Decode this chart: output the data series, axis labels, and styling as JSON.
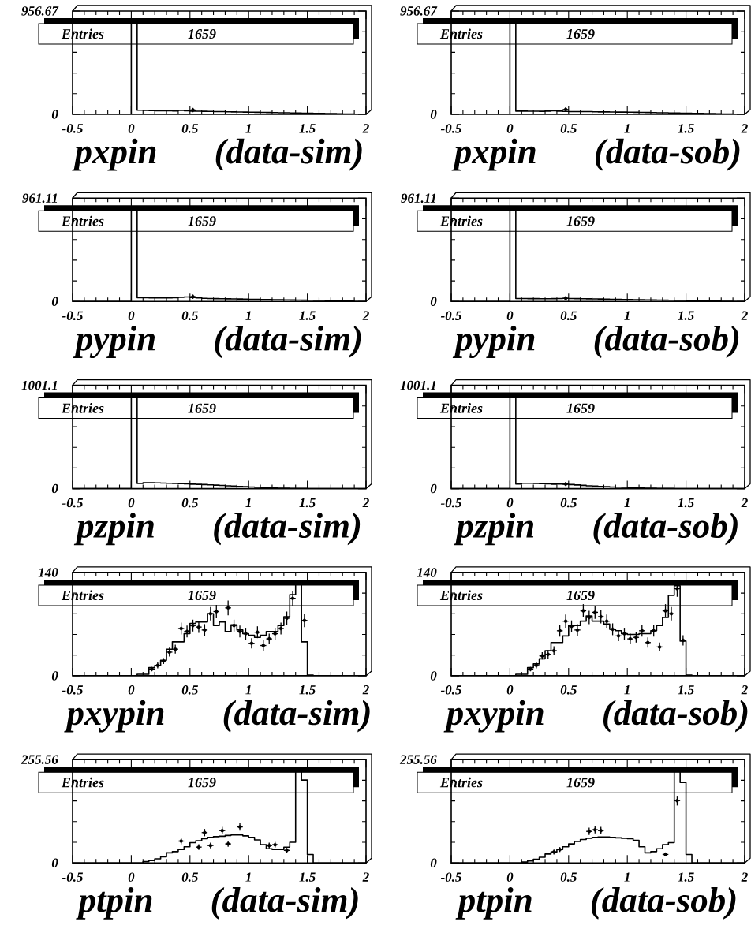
{
  "chart_data": [
    {
      "type": "histogram",
      "title": "pxpin (data-sim)",
      "xlim": [
        -0.5,
        2
      ],
      "xticks": [
        -0.5,
        0,
        0.5,
        1,
        1.5,
        2
      ],
      "ylim": [
        0,
        956.67
      ],
      "yticks": [
        0,
        956.67
      ],
      "annotations": [
        "Entries",
        "1659"
      ],
      "bins": [
        -0.5,
        -0.45,
        -0.4,
        -0.35,
        -0.3,
        -0.25,
        -0.2,
        -0.15,
        -0.1,
        -0.05,
        0,
        0.05,
        0.1,
        0.15,
        0.2,
        0.25,
        0.3,
        0.35,
        0.4,
        0.45,
        0.5,
        0.55,
        0.6,
        0.65,
        0.7,
        0.75,
        0.8,
        0.85,
        0.9,
        0.95,
        1,
        1.05,
        1.1,
        1.15,
        1.2,
        1.25,
        1.3,
        1.35,
        1.4,
        1.45,
        1.5,
        1.55,
        1.6,
        1.65,
        1.7,
        1.75,
        1.8,
        1.85,
        1.9,
        1.95,
        2
      ],
      "series": [
        {
          "color": "#000000",
          "values": [
            0,
            0,
            0,
            0,
            0,
            0,
            0,
            0,
            0,
            0,
            861,
            38,
            36,
            35,
            34,
            33,
            33,
            32,
            36,
            34,
            30,
            29,
            28,
            27,
            26,
            25,
            24,
            23,
            22,
            21,
            20,
            19,
            18,
            17,
            16,
            15,
            14,
            13,
            12,
            11,
            10,
            9,
            8,
            7,
            6,
            5,
            4,
            3,
            0,
            0
          ]
        },
        {
          "type": "scatter",
          "color": "#000000",
          "x": [
            0.525
          ],
          "values": [
            40
          ],
          "errors": [
            20
          ],
          "xerrors": [
            0.025
          ]
        }
      ]
    },
    {
      "type": "histogram",
      "title": "pxpin (data-sob)",
      "xlim": [
        -0.5,
        2
      ],
      "xticks": [
        -0.5,
        0,
        0.5,
        1,
        1.5,
        2
      ],
      "ylim": [
        0,
        956.67
      ],
      "yticks": [
        0,
        956.67
      ],
      "annotations": [
        "Entries",
        "1659"
      ],
      "bins": [
        -0.5,
        -0.45,
        -0.4,
        -0.35,
        -0.3,
        -0.25,
        -0.2,
        -0.15,
        -0.1,
        -0.05,
        0,
        0.05,
        0.1,
        0.15,
        0.2,
        0.25,
        0.3,
        0.35,
        0.4,
        0.45,
        0.5,
        0.55,
        0.6,
        0.65,
        0.7,
        0.75,
        0.8,
        0.85,
        0.9,
        0.95,
        1,
        1.05,
        1.1,
        1.15,
        1.2,
        1.25,
        1.3,
        1.35,
        1.4,
        1.45,
        1.5,
        1.55,
        1.6,
        1.65,
        1.7,
        1.75,
        1.8,
        1.85,
        1.9,
        1.95,
        2
      ],
      "series": [
        {
          "color": "#000000",
          "values": [
            0,
            0,
            0,
            0,
            0,
            0,
            0,
            0,
            0,
            0,
            861,
            30,
            30,
            29,
            29,
            28,
            30,
            34,
            30,
            27,
            26,
            26,
            25,
            25,
            24,
            23,
            23,
            22,
            21,
            21,
            20,
            19,
            18,
            17,
            16,
            15,
            14,
            13,
            12,
            11,
            10,
            9,
            8,
            7,
            6,
            5,
            4,
            3,
            0,
            0
          ]
        },
        {
          "type": "scatter",
          "color": "#000000",
          "x": [
            0.475
          ],
          "values": [
            45
          ],
          "errors": [
            20
          ],
          "xerrors": [
            0.025
          ]
        }
      ]
    },
    {
      "type": "histogram",
      "title": "pypin (data-sim)",
      "xlim": [
        -0.5,
        2
      ],
      "xticks": [
        -0.5,
        0,
        0.5,
        1,
        1.5,
        2
      ],
      "ylim": [
        0,
        961.11
      ],
      "yticks": [
        0,
        961.11
      ],
      "annotations": [
        "Entries",
        "1659"
      ],
      "bins": [
        -0.5,
        -0.45,
        -0.4,
        -0.35,
        -0.3,
        -0.25,
        -0.2,
        -0.15,
        -0.1,
        -0.05,
        0,
        0.05,
        0.1,
        0.15,
        0.2,
        0.25,
        0.3,
        0.35,
        0.4,
        0.45,
        0.5,
        0.55,
        0.6,
        0.65,
        0.7,
        0.75,
        0.8,
        0.85,
        0.9,
        0.95,
        1,
        1.05,
        1.1,
        1.15,
        1.2,
        1.25,
        1.3,
        1.35,
        1.4,
        1.45,
        1.5,
        1.55,
        1.6,
        1.65,
        1.7,
        1.75,
        1.8,
        1.85,
        1.9,
        1.95,
        2
      ],
      "series": [
        {
          "color": "#000000",
          "values": [
            0,
            0,
            0,
            0,
            0,
            0,
            0,
            0,
            0,
            0,
            865,
            36,
            35,
            34,
            33,
            33,
            34,
            36,
            40,
            42,
            38,
            34,
            30,
            28,
            27,
            26,
            25,
            24,
            23,
            22,
            21,
            20,
            19,
            18,
            17,
            16,
            15,
            14,
            13,
            12,
            11,
            10,
            9,
            8,
            7,
            6,
            5,
            4,
            0,
            0
          ]
        },
        {
          "type": "scatter",
          "color": "#000000",
          "x": [
            0.525
          ],
          "values": [
            45
          ],
          "errors": [
            20
          ],
          "xerrors": [
            0.025
          ]
        }
      ]
    },
    {
      "type": "histogram",
      "title": "pypin (data-sob)",
      "xlim": [
        -0.5,
        2
      ],
      "xticks": [
        -0.5,
        0,
        0.5,
        1,
        1.5,
        2
      ],
      "ylim": [
        0,
        961.11
      ],
      "yticks": [
        0,
        961.11
      ],
      "annotations": [
        "Entries",
        "1659"
      ],
      "bins": [
        -0.5,
        -0.45,
        -0.4,
        -0.35,
        -0.3,
        -0.25,
        -0.2,
        -0.15,
        -0.1,
        -0.05,
        0,
        0.05,
        0.1,
        0.15,
        0.2,
        0.25,
        0.3,
        0.35,
        0.4,
        0.45,
        0.5,
        0.55,
        0.6,
        0.65,
        0.7,
        0.75,
        0.8,
        0.85,
        0.9,
        0.95,
        1,
        1.05,
        1.1,
        1.15,
        1.2,
        1.25,
        1.3,
        1.35,
        1.4,
        1.45,
        1.5,
        1.55,
        1.6,
        1.65,
        1.7,
        1.75,
        1.8,
        1.85,
        1.9,
        1.95,
        2
      ],
      "series": [
        {
          "color": "#000000",
          "values": [
            0,
            0,
            0,
            0,
            0,
            0,
            0,
            0,
            0,
            0,
            865,
            28,
            28,
            27,
            27,
            26,
            26,
            27,
            28,
            30,
            28,
            27,
            26,
            25,
            24,
            23,
            22,
            21,
            20,
            19,
            18,
            17,
            16,
            15,
            14,
            13,
            12,
            11,
            10,
            9,
            8,
            7,
            6,
            5,
            4,
            3,
            2,
            2,
            0,
            0
          ]
        },
        {
          "type": "scatter",
          "color": "#000000",
          "x": [
            0.475
          ],
          "values": [
            30
          ],
          "errors": [
            20
          ],
          "xerrors": [
            0.025
          ]
        }
      ]
    },
    {
      "type": "histogram",
      "title": "pzpin (data-sim)",
      "xlim": [
        -0.5,
        2
      ],
      "xticks": [
        -0.5,
        0,
        0.5,
        1,
        1.5,
        2
      ],
      "ylim": [
        0,
        1001.1
      ],
      "yticks": [
        0,
        1001.1
      ],
      "annotations": [
        "Entries",
        "1659"
      ],
      "bins": [
        -0.5,
        -0.45,
        -0.4,
        -0.35,
        -0.3,
        -0.25,
        -0.2,
        -0.15,
        -0.1,
        -0.05,
        0,
        0.05,
        0.1,
        0.15,
        0.2,
        0.25,
        0.3,
        0.35,
        0.4,
        0.45,
        0.5,
        0.55,
        0.6,
        0.65,
        0.7,
        0.75,
        0.8,
        0.85,
        0.9,
        0.95,
        1,
        1.05,
        1.1,
        1.15,
        1.2,
        1.25,
        1.3,
        1.35,
        1.4,
        1.45,
        1.5,
        1.55,
        1.6,
        1.65,
        1.7,
        1.75,
        1.8,
        1.85,
        1.9,
        1.95,
        2
      ],
      "series": [
        {
          "color": "#000000",
          "values": [
            0,
            0,
            0,
            0,
            0,
            0,
            0,
            0,
            0,
            0,
            901,
            50,
            58,
            58,
            56,
            54,
            52,
            50,
            48,
            46,
            44,
            42,
            40,
            37,
            34,
            31,
            28,
            25,
            22,
            19,
            16,
            13,
            10,
            8,
            6,
            5,
            4,
            3,
            2,
            2,
            1,
            0,
            0,
            0,
            0,
            0,
            0,
            0,
            0,
            0
          ]
        }
      ]
    },
    {
      "type": "histogram",
      "title": "pzpin (data-sob)",
      "xlim": [
        -0.5,
        2
      ],
      "xticks": [
        -0.5,
        0,
        0.5,
        1,
        1.5,
        2
      ],
      "ylim": [
        0,
        1001.1
      ],
      "yticks": [
        0,
        1001.1
      ],
      "annotations": [
        "Entries",
        "1659"
      ],
      "bins": [
        -0.5,
        -0.45,
        -0.4,
        -0.35,
        -0.3,
        -0.25,
        -0.2,
        -0.15,
        -0.1,
        -0.05,
        0,
        0.05,
        0.1,
        0.15,
        0.2,
        0.25,
        0.3,
        0.35,
        0.4,
        0.45,
        0.5,
        0.55,
        0.6,
        0.65,
        0.7,
        0.75,
        0.8,
        0.85,
        0.9,
        0.95,
        1,
        1.05,
        1.1,
        1.15,
        1.2,
        1.25,
        1.3,
        1.35,
        1.4,
        1.45,
        1.5,
        1.55,
        1.6,
        1.65,
        1.7,
        1.75,
        1.8,
        1.85,
        1.9,
        1.95,
        2
      ],
      "series": [
        {
          "color": "#000000",
          "values": [
            0,
            0,
            0,
            0,
            0,
            0,
            0,
            0,
            0,
            0,
            901,
            45,
            52,
            52,
            50,
            48,
            46,
            44,
            45,
            44,
            40,
            36,
            32,
            28,
            25,
            22,
            19,
            16,
            14,
            12,
            10,
            8,
            6,
            5,
            4,
            3,
            2,
            2,
            1,
            1,
            1,
            0,
            0,
            0,
            0,
            0,
            0,
            0,
            0,
            0
          ]
        },
        {
          "type": "scatter",
          "color": "#000000",
          "x": [
            0.475
          ],
          "values": [
            45
          ],
          "errors": [
            20
          ],
          "xerrors": [
            0.025
          ]
        }
      ]
    },
    {
      "type": "histogram",
      "title": "pxypin (data-sim)",
      "xlim": [
        -0.5,
        2
      ],
      "xticks": [
        -0.5,
        0,
        0.5,
        1,
        1.5,
        2
      ],
      "ylim": [
        0,
        140
      ],
      "yticks": [
        0,
        140
      ],
      "annotations": [
        "Entries",
        "1659"
      ],
      "bins": [
        -0.5,
        -0.45,
        -0.4,
        -0.35,
        -0.3,
        -0.25,
        -0.2,
        -0.15,
        -0.1,
        -0.05,
        0,
        0.05,
        0.1,
        0.15,
        0.2,
        0.25,
        0.3,
        0.35,
        0.4,
        0.45,
        0.5,
        0.55,
        0.6,
        0.65,
        0.7,
        0.75,
        0.8,
        0.85,
        0.9,
        0.95,
        1,
        1.05,
        1.1,
        1.15,
        1.2,
        1.25,
        1.3,
        1.35,
        1.4,
        1.45,
        1.5,
        1.55,
        1.6,
        1.65,
        1.7,
        1.75,
        1.8,
        1.85,
        1.9,
        1.95,
        2
      ],
      "series": [
        {
          "color": "#000000",
          "values": [
            0,
            0,
            0,
            0,
            0,
            0,
            0,
            0,
            0,
            0,
            0,
            2,
            2,
            11,
            14,
            21,
            36,
            46,
            46,
            57,
            71,
            73,
            73,
            84,
            68,
            73,
            60,
            69,
            62,
            57,
            55,
            52,
            55,
            60,
            60,
            68,
            80,
            110,
            126,
            46,
            1,
            0,
            0,
            0,
            0,
            0,
            0,
            0,
            0,
            0
          ]
        },
        {
          "type": "scatter",
          "color": "#000000",
          "x": [
            0.175,
            0.225,
            0.275,
            0.325,
            0.375,
            0.425,
            0.475,
            0.525,
            0.575,
            0.625,
            0.675,
            0.725,
            0.825,
            0.875,
            0.925,
            0.975,
            1.025,
            1.075,
            1.125,
            1.175,
            1.225,
            1.275,
            1.325,
            1.375,
            1.475
          ],
          "values": [
            9,
            14,
            20,
            32,
            36,
            64,
            60,
            68,
            66,
            62,
            84,
            87,
            92,
            68,
            60,
            57,
            44,
            59,
            41,
            50,
            57,
            64,
            78,
            105,
            75
          ],
          "errors": [
            3,
            4,
            4,
            6,
            6,
            8,
            8,
            8,
            8,
            8,
            9,
            9,
            10,
            8,
            8,
            8,
            7,
            8,
            7,
            7,
            8,
            8,
            9,
            10,
            9
          ],
          "xerrors": [
            0.025,
            0.025,
            0.025,
            0.025,
            0.025,
            0.025,
            0.025,
            0.025,
            0.025,
            0.025,
            0.025,
            0.025,
            0.025,
            0.025,
            0.025,
            0.025,
            0.025,
            0.025,
            0.025,
            0.025,
            0.025,
            0.025,
            0.025,
            0.025,
            0.025
          ]
        }
      ]
    },
    {
      "type": "histogram",
      "title": "pxypin (data-sob)",
      "xlim": [
        -0.5,
        2
      ],
      "xticks": [
        -0.5,
        0,
        0.5,
        1,
        1.5,
        2
      ],
      "ylim": [
        0,
        140
      ],
      "yticks": [
        0,
        140
      ],
      "annotations": [
        "Entries",
        "1659"
      ],
      "bins": [
        -0.5,
        -0.45,
        -0.4,
        -0.35,
        -0.3,
        -0.25,
        -0.2,
        -0.15,
        -0.1,
        -0.05,
        0,
        0.05,
        0.1,
        0.15,
        0.2,
        0.25,
        0.3,
        0.35,
        0.4,
        0.45,
        0.5,
        0.55,
        0.6,
        0.65,
        0.7,
        0.75,
        0.8,
        0.85,
        0.9,
        0.95,
        1,
        1.05,
        1.1,
        1.15,
        1.2,
        1.25,
        1.3,
        1.35,
        1.4,
        1.45,
        1.5,
        1.55,
        1.6,
        1.65,
        1.7,
        1.75,
        1.8,
        1.85,
        1.9,
        1.95,
        2
      ],
      "series": [
        {
          "color": "#000000",
          "values": [
            0,
            0,
            0,
            0,
            0,
            0,
            0,
            0,
            0,
            0,
            0,
            2,
            2,
            11,
            16,
            23,
            34,
            45,
            45,
            54,
            68,
            68,
            74,
            81,
            74,
            74,
            70,
            63,
            61,
            57,
            56,
            56,
            57,
            57,
            61,
            68,
            79,
            109,
            122,
            47,
            1,
            0,
            0,
            0,
            0,
            0,
            0,
            0,
            0,
            0
          ]
        },
        {
          "type": "scatter",
          "color": "#000000",
          "x": [
            0.175,
            0.225,
            0.275,
            0.325,
            0.375,
            0.425,
            0.475,
            0.525,
            0.575,
            0.625,
            0.675,
            0.725,
            0.775,
            0.825,
            0.875,
            0.925,
            0.975,
            1.025,
            1.075,
            1.125,
            1.175,
            1.225,
            1.275,
            1.325,
            1.375,
            1.425,
            1.475
          ],
          "values": [
            9,
            14,
            27,
            29,
            34,
            61,
            74,
            67,
            62,
            88,
            79,
            86,
            80,
            74,
            63,
            54,
            57,
            50,
            52,
            61,
            45,
            61,
            39,
            88,
            84,
            118,
            48
          ],
          "errors": [
            3,
            4,
            5,
            6,
            6,
            8,
            9,
            8,
            8,
            9,
            9,
            9,
            9,
            9,
            8,
            7,
            8,
            7,
            7,
            8,
            7,
            8,
            6,
            9,
            9,
            11,
            7
          ],
          "xerrors": [
            0.025,
            0.025,
            0.025,
            0.025,
            0.025,
            0.025,
            0.025,
            0.025,
            0.025,
            0.025,
            0.025,
            0.025,
            0.025,
            0.025,
            0.025,
            0.025,
            0.025,
            0.025,
            0.025,
            0.025,
            0.025,
            0.025,
            0.025,
            0.025,
            0.025,
            0.025,
            0.025
          ]
        }
      ]
    },
    {
      "type": "histogram",
      "title": "ptpin (data-sim)",
      "xlim": [
        -0.5,
        2
      ],
      "xticks": [
        -0.5,
        0,
        0.5,
        1,
        1.5,
        2
      ],
      "ylim": [
        0,
        255.56
      ],
      "yticks": [
        0,
        255.56
      ],
      "annotations": [
        "Entries",
        "1659"
      ],
      "bins": [
        -0.5,
        -0.45,
        -0.4,
        -0.35,
        -0.3,
        -0.25,
        -0.2,
        -0.15,
        -0.1,
        -0.05,
        0,
        0.05,
        0.1,
        0.15,
        0.2,
        0.25,
        0.3,
        0.35,
        0.4,
        0.45,
        0.5,
        0.55,
        0.6,
        0.65,
        0.7,
        0.75,
        0.8,
        0.85,
        0.9,
        0.95,
        1,
        1.05,
        1.1,
        1.15,
        1.2,
        1.25,
        1.3,
        1.35,
        1.4,
        1.45,
        1.5,
        1.55,
        1.6,
        1.65,
        1.7,
        1.75,
        1.8,
        1.85,
        1.9,
        1.95,
        2
      ],
      "series": [
        {
          "color": "#000000",
          "values": [
            0,
            0,
            0,
            0,
            0,
            0,
            0,
            0,
            0,
            0,
            0,
            0,
            3,
            6,
            10,
            15,
            25,
            28,
            33,
            40,
            50,
            55,
            60,
            63,
            65,
            66,
            68,
            69,
            69,
            67,
            63,
            57,
            45,
            35,
            33,
            33,
            39,
            51,
            230,
            205,
            21,
            0,
            0,
            0,
            0,
            0,
            0,
            0,
            0,
            0
          ]
        },
        {
          "type": "scatter",
          "color": "#000000",
          "x": [
            0.425,
            0.575,
            0.625,
            0.675,
            0.775,
            0.825,
            0.925,
            1.175,
            1.225,
            1.325
          ],
          "values": [
            54,
            39,
            75,
            43,
            80,
            47,
            89,
            43,
            45,
            31
          ],
          "errors": [
            8,
            7,
            9,
            7,
            9,
            7,
            9,
            7,
            7,
            6
          ],
          "xerrors": [
            0.025,
            0.025,
            0.025,
            0.025,
            0.025,
            0.025,
            0.025,
            0.025,
            0.025,
            0.025
          ]
        }
      ]
    },
    {
      "type": "histogram",
      "title": "ptpin (data-sob)",
      "xlim": [
        -0.5,
        2
      ],
      "xticks": [
        -0.5,
        0,
        0.5,
        1,
        1.5,
        2
      ],
      "ylim": [
        0,
        255.56
      ],
      "yticks": [
        0,
        255.56
      ],
      "annotations": [
        "Entries",
        "1659"
      ],
      "bins": [
        -0.5,
        -0.45,
        -0.4,
        -0.35,
        -0.3,
        -0.25,
        -0.2,
        -0.15,
        -0.1,
        -0.05,
        0,
        0.05,
        0.1,
        0.15,
        0.2,
        0.25,
        0.3,
        0.35,
        0.4,
        0.45,
        0.5,
        0.55,
        0.6,
        0.65,
        0.7,
        0.75,
        0.8,
        0.85,
        0.9,
        0.95,
        1,
        1.05,
        1.1,
        1.15,
        1.2,
        1.25,
        1.3,
        1.35,
        1.4,
        1.45,
        1.5,
        1.55,
        1.6,
        1.65,
        1.7,
        1.75,
        1.8,
        1.85,
        1.9,
        1.95,
        2
      ],
      "series": [
        {
          "color": "#000000",
          "values": [
            0,
            0,
            0,
            0,
            0,
            0,
            0,
            0,
            0,
            0,
            0,
            0,
            2,
            5,
            9,
            14,
            22,
            27,
            33,
            40,
            47,
            53,
            58,
            61,
            63,
            64,
            64,
            63,
            62,
            61,
            60,
            56,
            40,
            25,
            28,
            35,
            45,
            50,
            230,
            199,
            21,
            0,
            0,
            0,
            0,
            0,
            0,
            0,
            0,
            0
          ]
        },
        {
          "type": "scatter",
          "color": "#000000",
          "x": [
            0.375,
            0.425,
            0.675,
            0.725,
            0.775,
            1.325,
            1.425
          ],
          "values": [
            27,
            33,
            78,
            82,
            80,
            21,
            154
          ],
          "errors": [
            6,
            6,
            9,
            9,
            9,
            5,
            12
          ],
          "xerrors": [
            0.025,
            0.025,
            0.025,
            0.025,
            0.025,
            0.025,
            0.025
          ]
        }
      ]
    }
  ]
}
